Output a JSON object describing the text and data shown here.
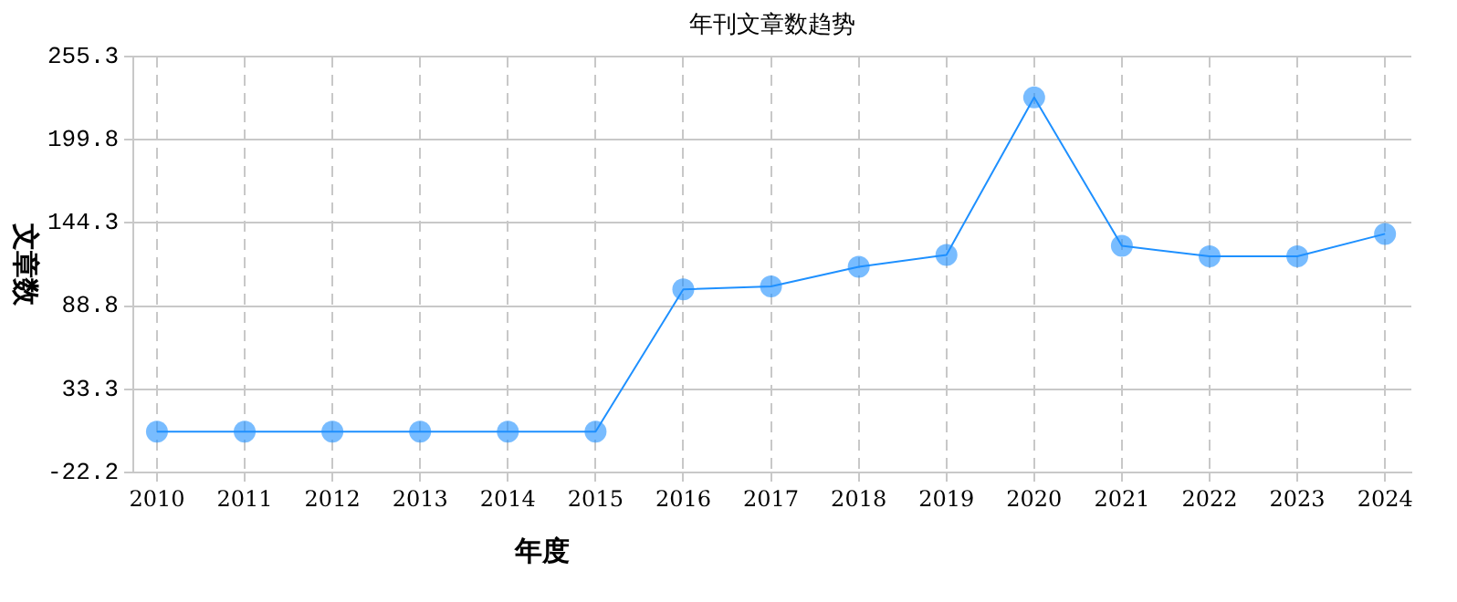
{
  "chart_data": {
    "type": "line",
    "title": "年刊文章数趋势",
    "xlabel": "年度",
    "ylabel": "文章数",
    "categories": [
      "2010",
      "2011",
      "2012",
      "2013",
      "2014",
      "2015",
      "2016",
      "2017",
      "2018",
      "2019",
      "2020",
      "2021",
      "2022",
      "2023",
      "2024"
    ],
    "series": [
      {
        "color": "#1e90ff",
        "values": [
          5,
          5,
          5,
          5,
          5,
          5,
          100,
          102,
          115,
          123,
          228,
          129,
          122,
          122,
          137
        ]
      }
    ],
    "ylim": [
      -22.2,
      255.3
    ],
    "yticks": [
      -22.2,
      33.3,
      88.8,
      144.3,
      199.8,
      255.3
    ],
    "grid": true,
    "marker": "circle",
    "line_style": "solid",
    "legend": false
  }
}
